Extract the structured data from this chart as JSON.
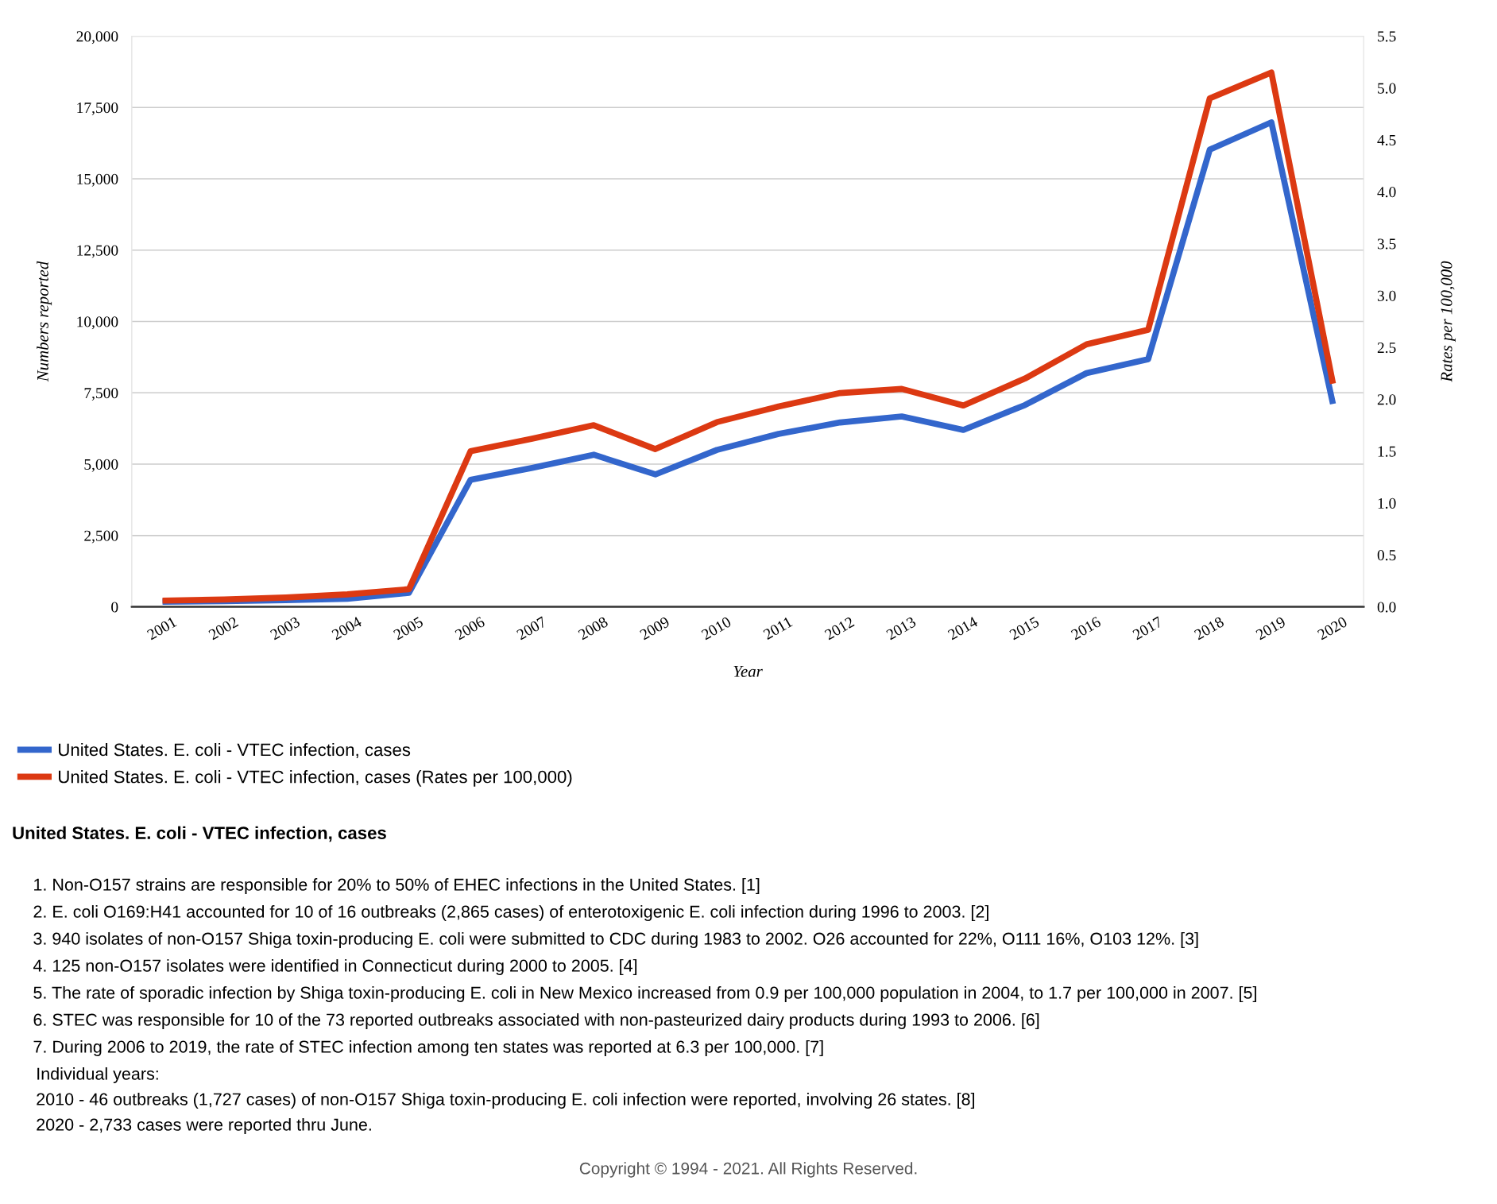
{
  "chart_data": {
    "type": "line",
    "title": "United States. E. coli - VTEC infection, cases",
    "xlabel": "Year",
    "ylabel": "Numbers reported",
    "y2label": "Rates per 100,000",
    "categories": [
      "2001",
      "2002",
      "2003",
      "2004",
      "2005",
      "2006",
      "2007",
      "2008",
      "2009",
      "2010",
      "2011",
      "2012",
      "2013",
      "2014",
      "2015",
      "2016",
      "2017",
      "2018",
      "2019",
      "2020"
    ],
    "series": [
      {
        "name": "United States. E. coli - VTEC infection, cases",
        "color": "#3366cc",
        "values": [
          180,
          200,
          230,
          280,
          490,
          4450,
          4870,
          5330,
          4640,
          5500,
          6060,
          6460,
          6670,
          6200,
          7070,
          8190,
          8680,
          16020,
          16980,
          7110
        ]
      },
      {
        "name": "United States. E. coli - VTEC infection, cases (Rates per 100,000)",
        "color": "#dc3912",
        "axis": "y2",
        "values": [
          0.06,
          0.07,
          0.09,
          0.12,
          0.17,
          1.5,
          1.62,
          1.75,
          1.52,
          1.78,
          1.93,
          2.06,
          2.1,
          1.94,
          2.2,
          2.53,
          2.67,
          4.9,
          5.15,
          2.15
        ]
      }
    ],
    "ylim": [
      0,
      20000
    ],
    "yticks": [
      {
        "value": 0,
        "label": "0"
      },
      {
        "value": 2500,
        "label": "2,500"
      },
      {
        "value": 5000,
        "label": "5,000"
      },
      {
        "value": 7500,
        "label": "7,500"
      },
      {
        "value": 10000,
        "label": "10,000"
      },
      {
        "value": 12500,
        "label": "12,500"
      },
      {
        "value": 15000,
        "label": "15,000"
      },
      {
        "value": 17500,
        "label": "17,500"
      },
      {
        "value": 20000,
        "label": "20,000"
      }
    ],
    "y2lim": [
      0,
      5.5
    ],
    "y2ticks": [
      {
        "value": 0,
        "label": "0.0"
      },
      {
        "value": 0.5,
        "label": "0.5"
      },
      {
        "value": 1,
        "label": "1.0"
      },
      {
        "value": 1.5,
        "label": "1.5"
      },
      {
        "value": 2,
        "label": "2.0"
      },
      {
        "value": 2.5,
        "label": "2.5"
      },
      {
        "value": 3,
        "label": "3.0"
      },
      {
        "value": 3.5,
        "label": "3.5"
      },
      {
        "value": 4,
        "label": "4.0"
      },
      {
        "value": 4.5,
        "label": "4.5"
      },
      {
        "value": 5,
        "label": "5.0"
      },
      {
        "value": 5.5,
        "label": "5.5"
      }
    ],
    "grid": "y",
    "legend": "bottom left",
    "marker": "none",
    "line_style": "solid",
    "annotations": [
      "1. Non-O157 strains are responsible for 20% to 50% of EHEC infections in the United States. [1]",
      "2. E. coli O169:H41 accounted for 10 of 16 outbreaks (2,865 cases) of enterotoxigenic E. coli infection during 1996 to 2003. [2]",
      "3. 940 isolates of non-O157 Shiga toxin-producing E. coli were submitted to CDC during 1983 to 2002. O26 accounted for 22%, O111 16%, O103 12%. [3]",
      "4. 125 non-O157 isolates were identified in Connecticut during 2000 to 2005. [4]",
      "5. The rate of sporadic infection by Shiga toxin-producing E. coli in New Mexico increased from 0.9 per 100,000 population in 2004, to 1.7 per 100,000 in 2007. [5]",
      "6. STEC was responsible for 10 of the 73 reported outbreaks associated with non-pasteurized dairy products during 1993 to 2006. [6]",
      "7. During 2006 to 2019, the rate of STEC infection among ten states was reported at 6.3 per 100,000. [7]",
      "Individual years:",
      "2010 - 46 outbreaks (1,727 cases) of non-O157 Shiga toxin-producing E. coli infection were reported, involving 26 states. [8]",
      "2020 - 2,733 cases were reported thru June.",
      "Copyright © 1994 - 2021. All Rights Reserved."
    ]
  }
}
